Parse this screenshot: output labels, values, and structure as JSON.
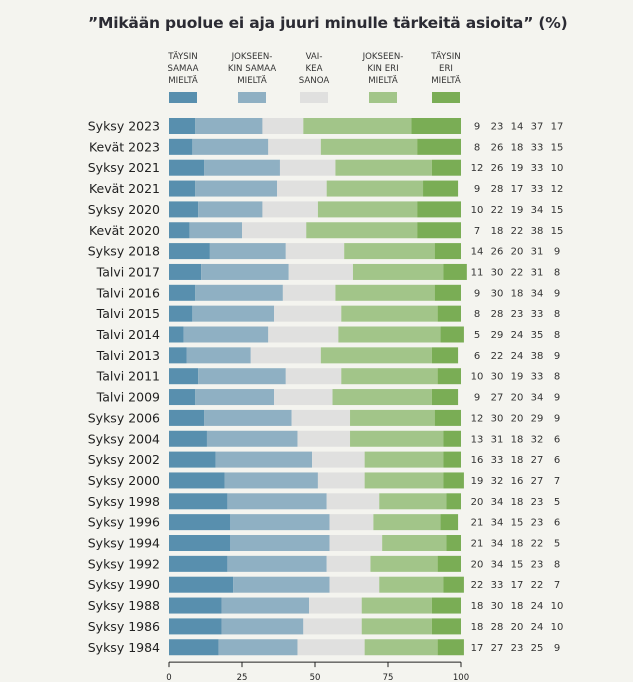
{
  "chart_data": {
    "type": "bar",
    "orientation": "horizontal",
    "stacked": true,
    "title": "”Mikään puolue ei aja juuri minulle tärkeitä asioita” (%)",
    "xlabel": "",
    "ylabel": "",
    "xlim": [
      0,
      100
    ],
    "xticks": [
      0,
      25,
      50,
      75,
      100
    ],
    "grid": false,
    "legend_position": "top",
    "categories": [
      "Syksy 2023",
      "Kevät 2023",
      "Syksy 2021",
      "Kevät 2021",
      "Syksy 2020",
      "Kevät 2020",
      "Syksy 2018",
      "Talvi 2017",
      "Talvi 2016",
      "Talvi 2015",
      "Talvi 2014",
      "Talvi 2013",
      "Talvi 2011",
      "Talvi 2009",
      "Syksy 2006",
      "Syksy 2004",
      "Syksy 2002",
      "Syksy 2000",
      "Syksy 1998",
      "Syksy 1996",
      "Syksy 1994",
      "Syksy 1992",
      "Syksy 1990",
      "Syksy 1988",
      "Syksy 1986",
      "Syksy 1984"
    ],
    "series": [
      {
        "name": "TÄYSIN\nSAMAA\nMIELTÄ",
        "color": "#588fae",
        "values": [
          9,
          8,
          12,
          9,
          10,
          7,
          14,
          11,
          9,
          8,
          5,
          6,
          10,
          9,
          12,
          13,
          16,
          19,
          20,
          21,
          21,
          20,
          22,
          18,
          18,
          17
        ]
      },
      {
        "name": "JOKSEEN-\nKIN SAMAA\nMIELTÄ",
        "color": "#8fb0c3",
        "values": [
          23,
          26,
          26,
          28,
          22,
          18,
          26,
          30,
          30,
          28,
          29,
          22,
          30,
          27,
          30,
          31,
          33,
          32,
          34,
          34,
          34,
          34,
          33,
          30,
          28,
          27
        ]
      },
      {
        "name": "VAI-\nKEA\nSANOA",
        "color": "#e0e0df",
        "values": [
          14,
          18,
          19,
          17,
          19,
          22,
          20,
          22,
          18,
          23,
          24,
          24,
          19,
          20,
          20,
          18,
          18,
          16,
          18,
          15,
          18,
          15,
          17,
          18,
          20,
          23
        ]
      },
      {
        "name": "JOKSEEN-\nKIN ERI\nMIELTÄ",
        "color": "#a2c589",
        "values": [
          37,
          33,
          33,
          33,
          34,
          38,
          31,
          31,
          34,
          33,
          35,
          38,
          33,
          34,
          29,
          32,
          27,
          27,
          23,
          23,
          22,
          23,
          22,
          24,
          24,
          25
        ]
      },
      {
        "name": "TÄYSIN\nERI\nMIELTÄ",
        "color": "#7aad55",
        "values": [
          17,
          15,
          10,
          12,
          15,
          15,
          9,
          8,
          9,
          8,
          8,
          9,
          8,
          9,
          9,
          6,
          6,
          7,
          5,
          6,
          5,
          8,
          7,
          10,
          10,
          9
        ]
      }
    ]
  }
}
